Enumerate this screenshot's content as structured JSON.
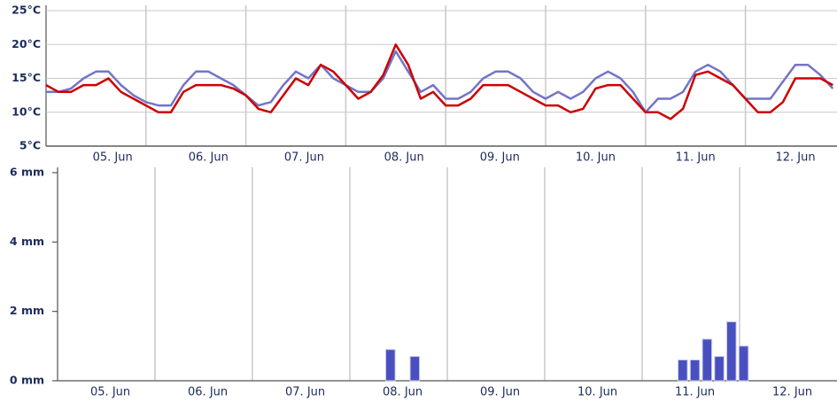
{
  "chart_data": [
    {
      "type": "line",
      "x": [
        0,
        3,
        6,
        9,
        12,
        15,
        18,
        21,
        24,
        27,
        30,
        33,
        36,
        39,
        42,
        45,
        48,
        51,
        54,
        57,
        60,
        63,
        66,
        69,
        72,
        75,
        78,
        81,
        84,
        87,
        90,
        93,
        96,
        99,
        102,
        105,
        108,
        111,
        114,
        117,
        120,
        123,
        126,
        129,
        132,
        135,
        138,
        141,
        144,
        147,
        150,
        153,
        156,
        159,
        162,
        165,
        168,
        171,
        174,
        177,
        180,
        183,
        186,
        189
      ],
      "series": [
        {
          "color": "#7474c8",
          "values": [
            13,
            13,
            13.5,
            15,
            16,
            16,
            14,
            12.5,
            11.5,
            11,
            11,
            14,
            16,
            16,
            15,
            14,
            12.5,
            11,
            11.5,
            14,
            16,
            15,
            17,
            15,
            14,
            13,
            13,
            15,
            19,
            16,
            13,
            14,
            12,
            12,
            13,
            15,
            16,
            16,
            15,
            13,
            12,
            13,
            12,
            13,
            15,
            16,
            15,
            13,
            10,
            12,
            12,
            13,
            16,
            17,
            16,
            14,
            12,
            12,
            12,
            14.5,
            17,
            17,
            15.5,
            13.5
          ]
        },
        {
          "color": "#cc0000",
          "values": [
            14,
            13,
            13,
            14,
            14,
            15,
            13,
            12,
            11,
            10,
            10,
            13,
            14,
            14,
            14,
            13.5,
            12.5,
            10.5,
            10,
            12.5,
            15,
            14,
            17,
            16,
            14,
            12,
            13,
            15.5,
            20,
            17,
            12,
            13,
            11,
            11,
            12,
            14,
            14,
            14,
            13,
            12,
            11,
            11,
            10,
            10.5,
            13.5,
            14,
            14,
            12,
            10,
            10,
            9,
            10.5,
            15.5,
            16,
            15,
            14,
            12,
            10,
            10,
            11.5,
            15,
            15,
            15,
            14
          ]
        }
      ],
      "xlim": [
        0,
        190
      ],
      "xgrid": [
        0,
        24,
        48,
        72,
        96,
        120,
        144,
        168
      ],
      "xticks": [
        {
          "value": 16,
          "label": "05. Jun"
        },
        {
          "value": 39,
          "label": "06. Jun"
        },
        {
          "value": 62,
          "label": "07. Jun"
        },
        {
          "value": 86,
          "label": "08. Jun"
        },
        {
          "value": 109,
          "label": "09. Jun"
        },
        {
          "value": 132,
          "label": "10. Jun"
        },
        {
          "value": 156,
          "label": "11. Jun"
        },
        {
          "value": 180,
          "label": "12. Jun"
        }
      ],
      "ylim": [
        5,
        25
      ],
      "yticks": [
        {
          "value": 5,
          "label": "5°C"
        },
        {
          "value": 10,
          "label": "10°C"
        },
        {
          "value": 15,
          "label": "15°C"
        },
        {
          "value": 20,
          "label": "20°C"
        },
        {
          "value": 25,
          "label": "25°C"
        }
      ],
      "grid": true
    },
    {
      "type": "bar",
      "x": [
        82,
        88,
        154,
        157,
        160,
        163,
        166,
        169
      ],
      "values": [
        0.9,
        0.7,
        0.6,
        0.6,
        1.2,
        0.7,
        1.7,
        1.0
      ],
      "color": "#4a4fc0",
      "xlim": [
        0,
        192
      ],
      "xgrid": [
        0,
        24,
        48,
        72,
        96,
        120,
        144,
        168
      ],
      "xticks": [
        {
          "value": 13,
          "label": "05. Jun"
        },
        {
          "value": 37,
          "label": "06. Jun"
        },
        {
          "value": 61,
          "label": "07. Jun"
        },
        {
          "value": 85,
          "label": "08. Jun"
        },
        {
          "value": 109,
          "label": "09. Jun"
        },
        {
          "value": 133,
          "label": "10. Jun"
        },
        {
          "value": 157,
          "label": "11. Jun"
        },
        {
          "value": 181,
          "label": "12. Jun"
        }
      ],
      "ylim": [
        0,
        6
      ],
      "yticks": [
        {
          "value": 0,
          "label": "0 mm"
        },
        {
          "value": 2,
          "label": "2 mm"
        },
        {
          "value": 4,
          "label": "4 mm"
        },
        {
          "value": 6,
          "label": "6 mm"
        }
      ],
      "grid": false
    }
  ]
}
